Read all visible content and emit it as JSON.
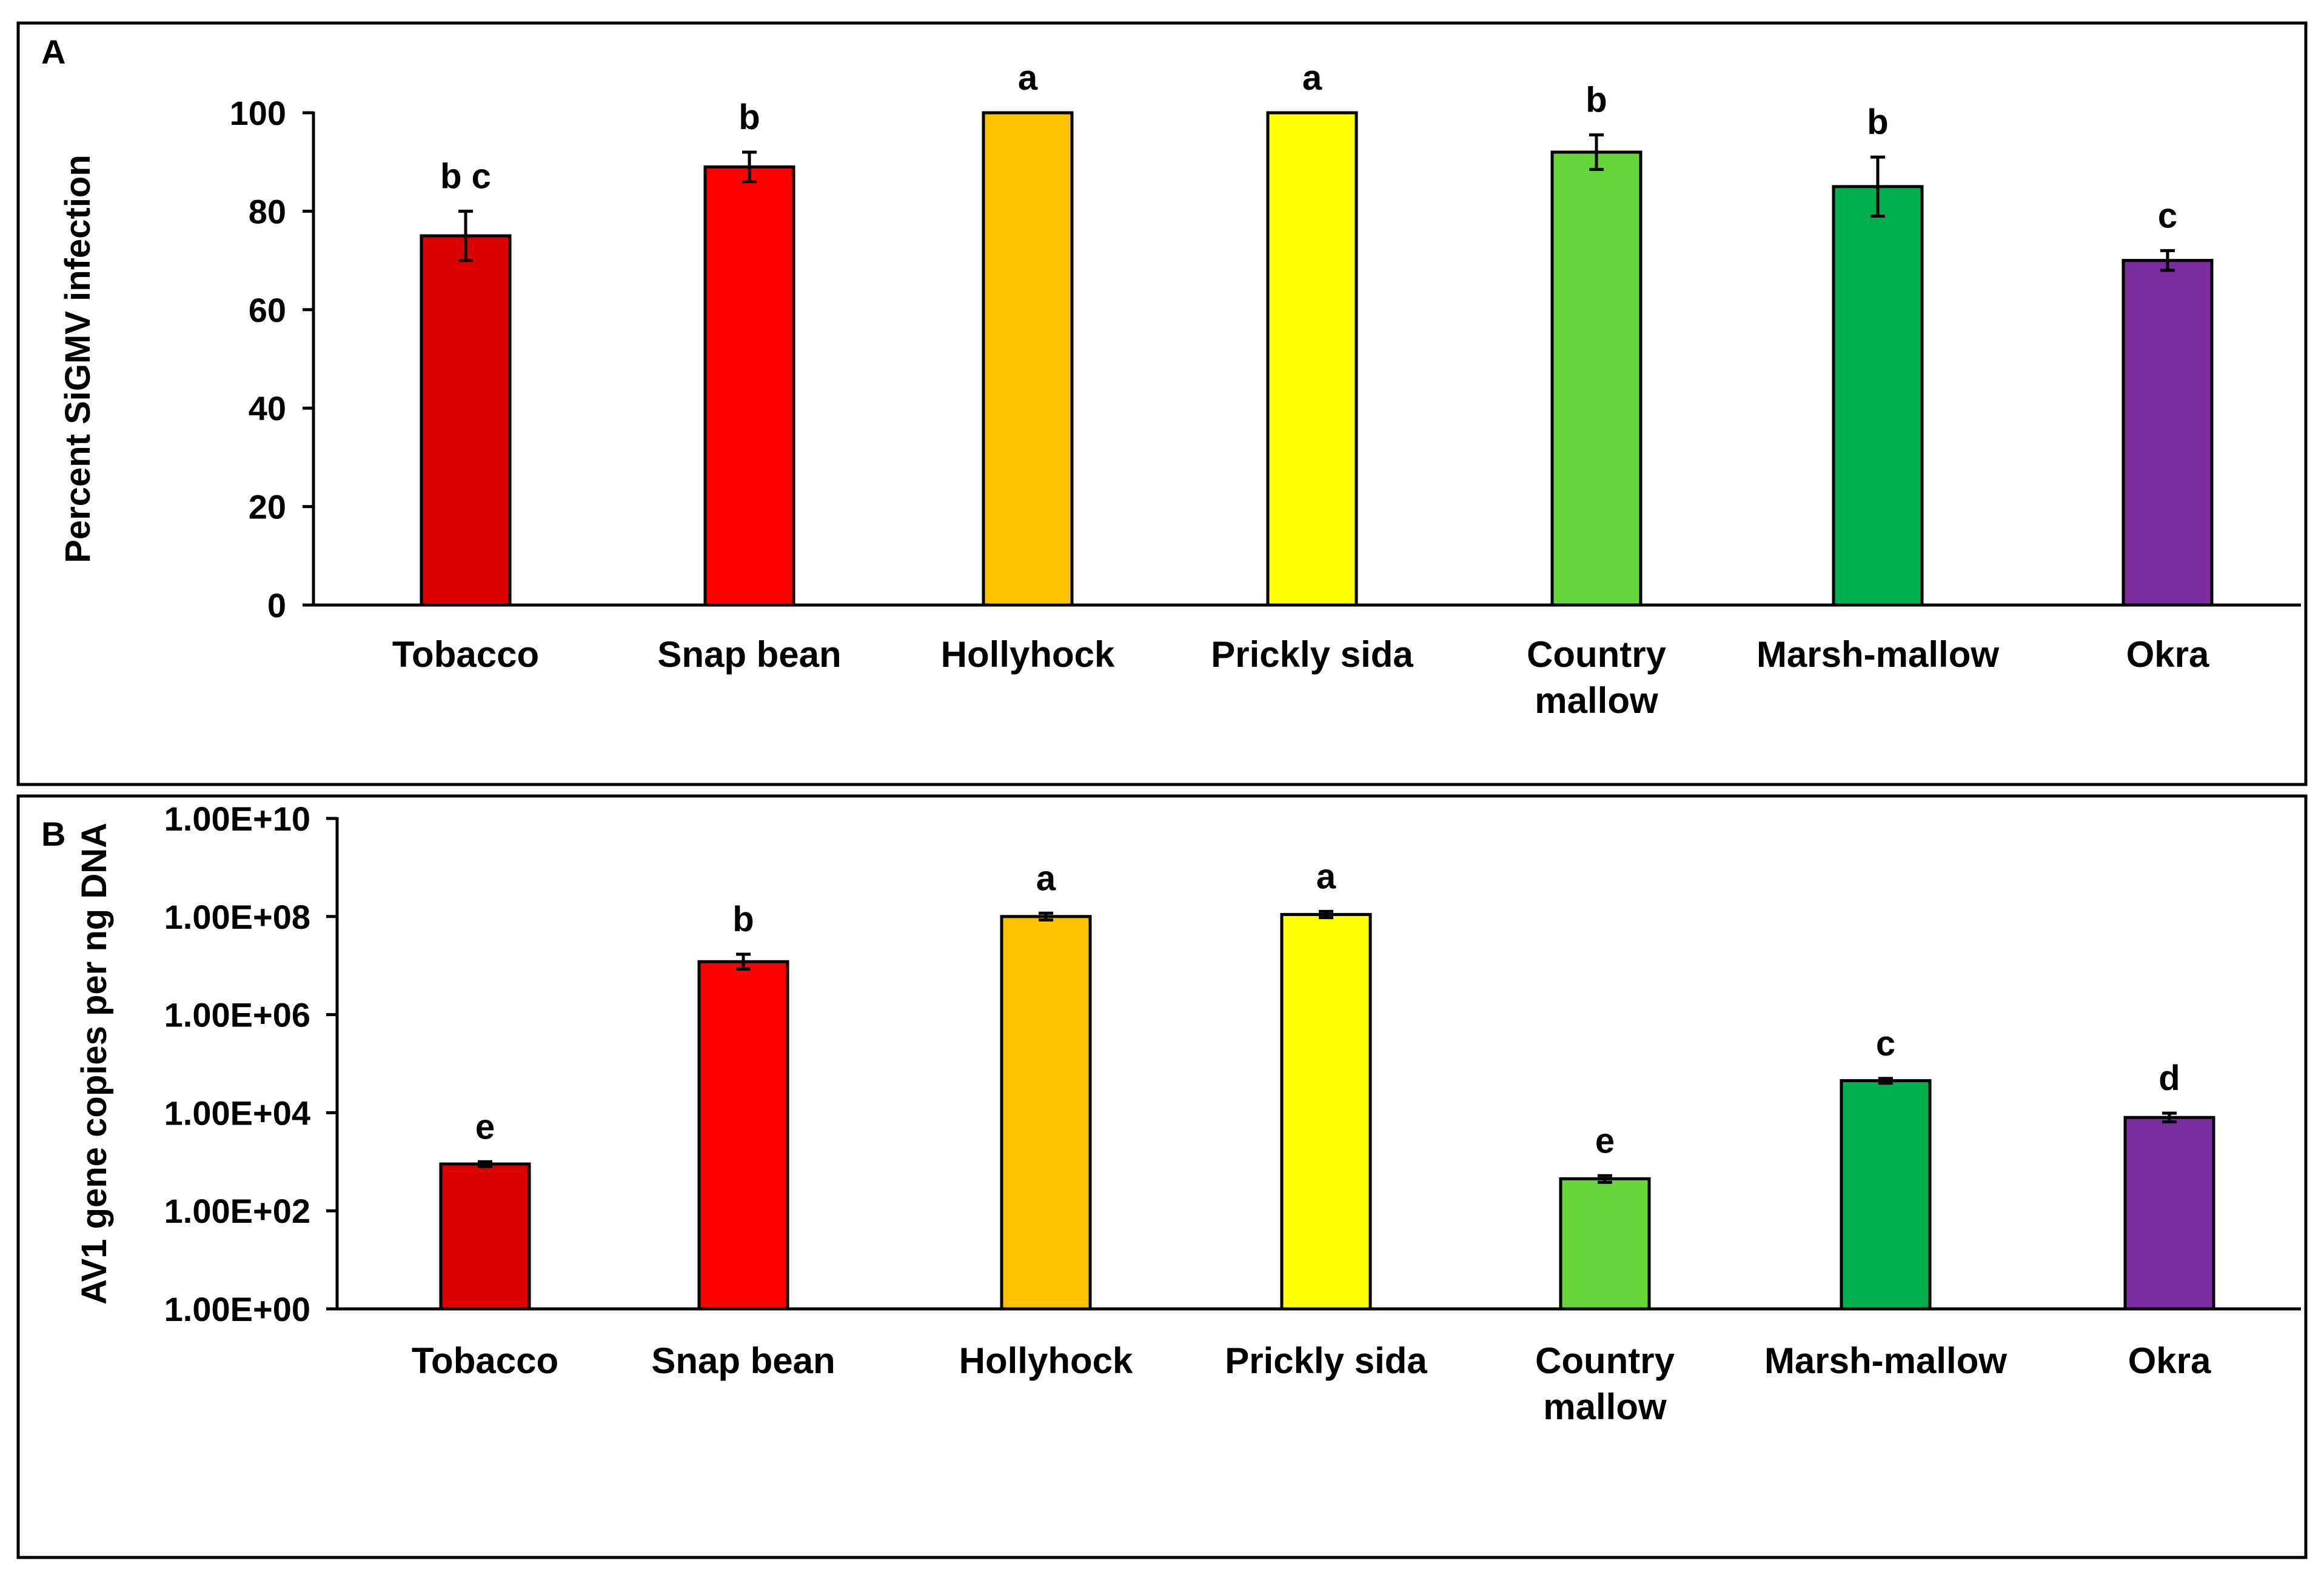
{
  "chart_data": [
    {
      "panel": "A",
      "type": "bar",
      "ylabel": "Percent SiGMV infection",
      "xlabel": "",
      "yscale": "linear",
      "ylim": [
        0,
        100
      ],
      "ticks": [
        0,
        20,
        40,
        60,
        80,
        100
      ],
      "tick_labels": [
        "0",
        "20",
        "40",
        "60",
        "80",
        "100"
      ],
      "categories": [
        [
          "Tobacco"
        ],
        [
          "Snap bean"
        ],
        [
          "Hollyhock"
        ],
        [
          "Prickly sida"
        ],
        [
          "Country",
          "mallow"
        ],
        [
          "Marsh-mallow"
        ],
        [
          "Okra"
        ]
      ],
      "values": [
        75,
        89,
        100,
        100,
        92,
        85,
        70
      ],
      "errors": [
        5,
        3,
        0,
        0,
        3.5,
        6,
        2
      ],
      "significance": [
        "b c",
        "b",
        "a",
        "a",
        "b",
        "b",
        "c"
      ],
      "colors": [
        "#dd0000",
        "#ff0000",
        "#ffc000",
        "#ffff00",
        "#66d63a",
        "#00b050",
        "#7b2c9e"
      ],
      "grid": false
    },
    {
      "panel": "B",
      "type": "bar",
      "ylabel": "AV1 gene copies per ng DNA",
      "xlabel": "",
      "yscale": "log10",
      "ylim": [
        1,
        10000000000
      ],
      "ticks": [
        1,
        100,
        10000,
        1000000,
        100000000,
        10000000000
      ],
      "tick_labels": [
        "1.00E+00",
        "1.00E+02",
        "1.00E+04",
        "1.00E+06",
        "1.00E+08",
        "1.00E+10"
      ],
      "categories": [
        [
          "Tobacco"
        ],
        [
          "Snap bean"
        ],
        [
          "Hollyhock"
        ],
        [
          "Prickly sida"
        ],
        [
          "Country",
          "mallow"
        ],
        [
          "Marsh-mallow"
        ],
        [
          "Okra"
        ]
      ],
      "values": [
        900,
        12000000,
        100000000,
        110000000,
        450,
        45000,
        8000
      ],
      "error_bounds": [
        [
          800,
          1000
        ],
        [
          8500000,
          17000000
        ],
        [
          85000000,
          117000000
        ],
        [
          95000000,
          127000000
        ],
        [
          380,
          520
        ],
        [
          40000,
          50000
        ],
        [
          6500,
          9800
        ]
      ],
      "significance": [
        "e",
        "b",
        "a",
        "a",
        "e",
        "c",
        "d"
      ],
      "colors": [
        "#dd0000",
        "#ff0000",
        "#ffc000",
        "#ffff00",
        "#66d63a",
        "#00b050",
        "#7b2c9e"
      ],
      "grid": false
    }
  ]
}
